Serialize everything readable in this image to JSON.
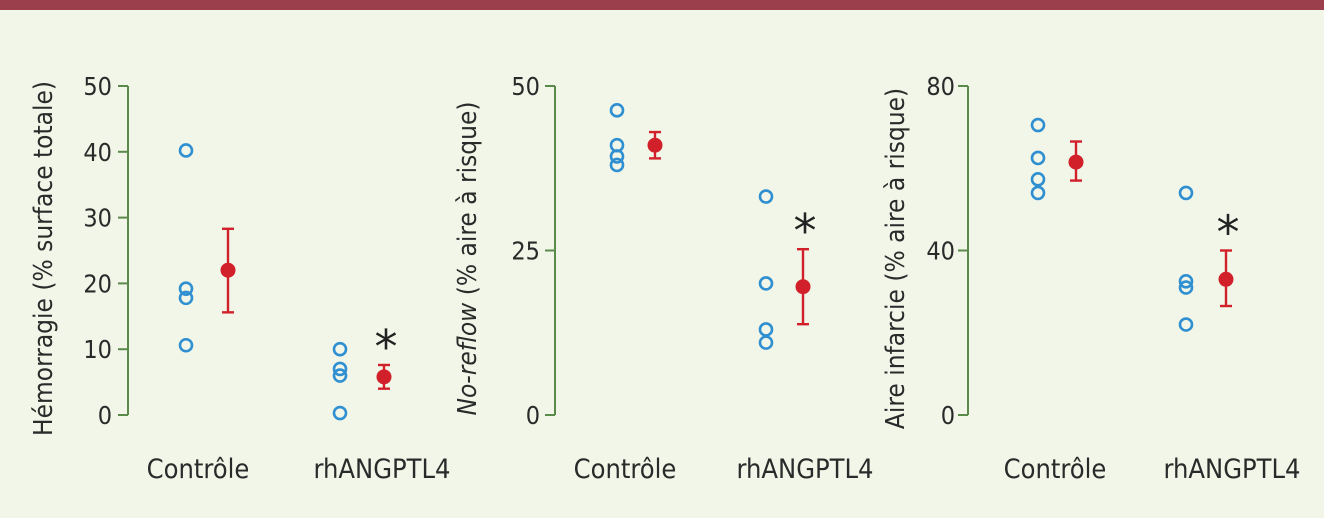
{
  "colors": {
    "background": "#f1f6e8",
    "top_bar": "#9b3f4c",
    "axis": "#5a8a4a",
    "individual_points": "#2f8fd0",
    "mean_points": "#d1202a"
  },
  "chart_data": [
    {
      "type": "scatter",
      "ylabel_parts": [
        {
          "text": "Hémorragie (% surface totale)",
          "italic": false
        }
      ],
      "ylim": [
        0,
        50
      ],
      "yticks": [
        0,
        10,
        20,
        30,
        40,
        50
      ],
      "categories": [
        "Contrôle",
        "rhANGPTL4"
      ],
      "individual": [
        [
          40.2,
          19.2,
          17.8,
          10.6
        ],
        [
          10.0,
          7.0,
          6.0,
          0.3
        ]
      ],
      "mean": [
        22.0,
        5.8
      ],
      "error": [
        [
          15.6,
          28.3
        ],
        [
          4.0,
          7.6
        ]
      ],
      "significance": [
        "",
        "*"
      ]
    },
    {
      "type": "scatter",
      "ylabel_parts": [
        {
          "text": "No-reflow",
          "italic": true
        },
        {
          "text": " (% aire à risque)",
          "italic": false
        }
      ],
      "ylim": [
        0,
        50
      ],
      "yticks": [
        0,
        25,
        50
      ],
      "categories": [
        "Contrôle",
        "rhANGPTL4"
      ],
      "individual": [
        [
          46.3,
          41.0,
          39.3,
          38.0
        ],
        [
          33.2,
          20.0,
          13.0,
          11.0
        ]
      ],
      "mean": [
        41.0,
        19.5
      ],
      "error": [
        [
          39.0,
          43.0
        ],
        [
          13.8,
          25.2
        ]
      ],
      "significance": [
        "",
        "*"
      ]
    },
    {
      "type": "scatter",
      "ylabel_parts": [
        {
          "text": "Aire infarcie (% aire à risque)",
          "italic": false
        }
      ],
      "ylim": [
        0,
        80
      ],
      "yticks": [
        0,
        40,
        80
      ],
      "categories": [
        "Contrôle",
        "rhANGPTL4"
      ],
      "individual": [
        [
          70.5,
          62.5,
          57.3,
          54.0
        ],
        [
          54.0,
          32.5,
          31.0,
          22.0
        ]
      ],
      "mean": [
        61.5,
        33.0
      ],
      "error": [
        [
          57.0,
          66.5
        ],
        [
          26.5,
          40.0
        ]
      ],
      "significance": [
        "",
        "*"
      ]
    }
  ]
}
